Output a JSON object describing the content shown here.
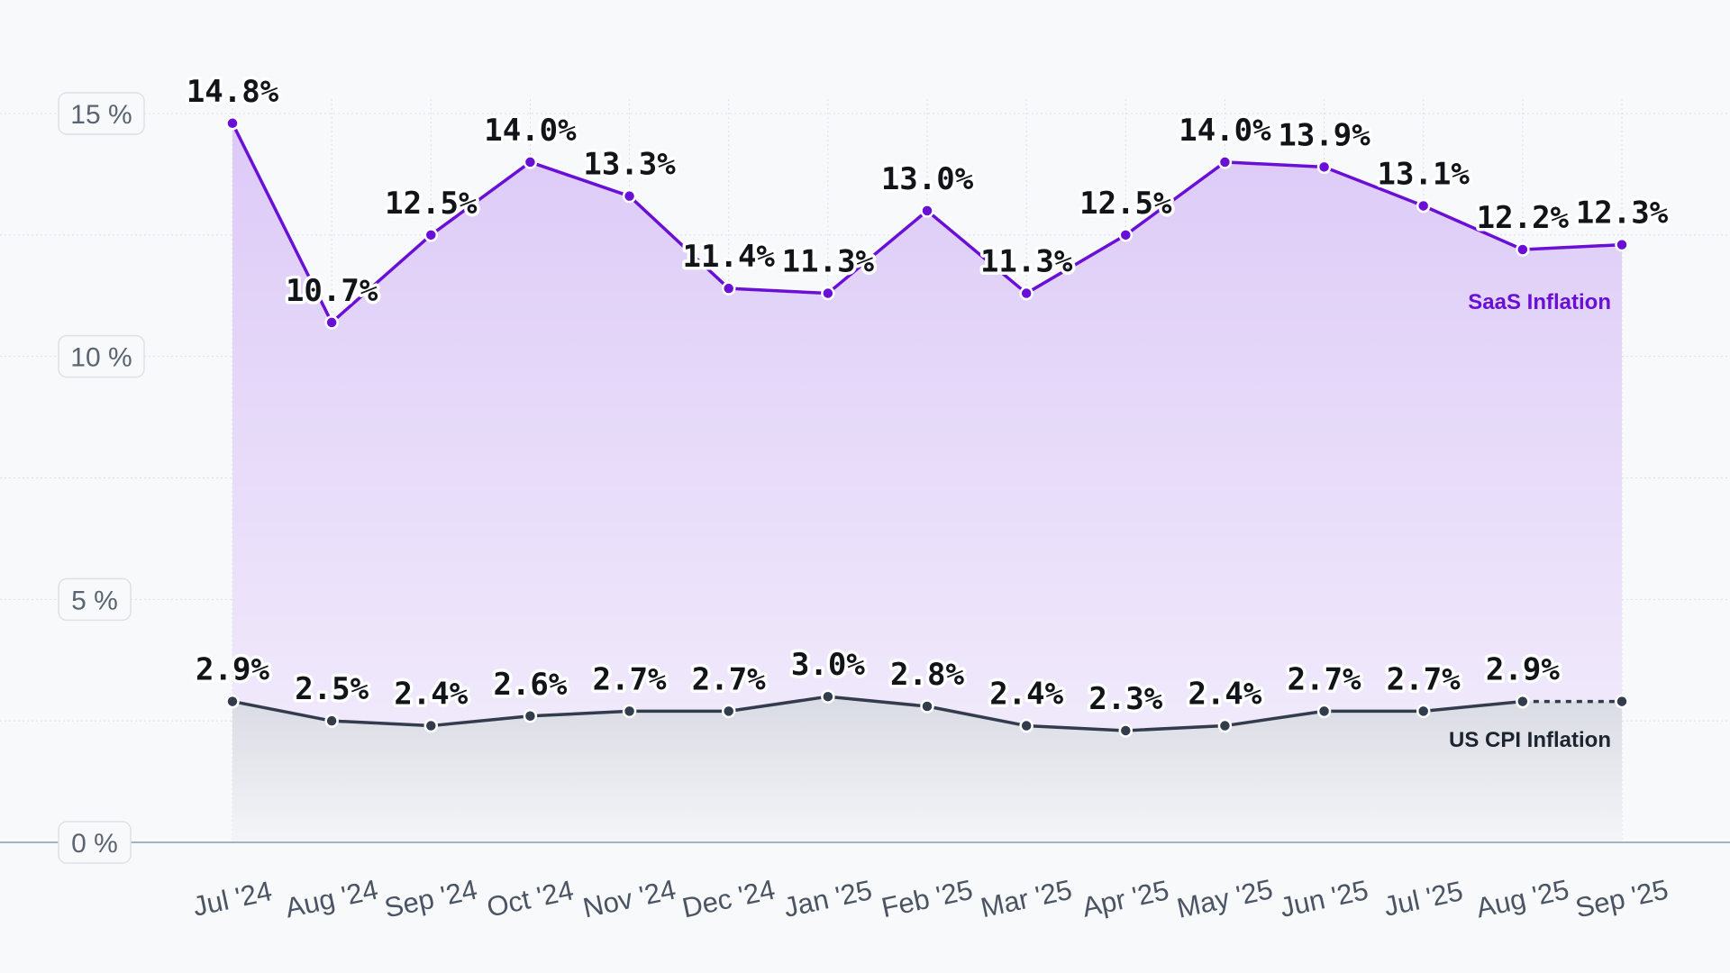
{
  "chart_data": {
    "type": "area",
    "categories": [
      "Jul '24",
      "Aug '24",
      "Sep '24",
      "Oct '24",
      "Nov '24",
      "Dec '24",
      "Jan '25",
      "Feb '25",
      "Mar '25",
      "Apr '25",
      "May '25",
      "Jun '25",
      "Jul '25",
      "Aug '25",
      "Sep '25"
    ],
    "y_ticks": [
      "0 %",
      "5 %",
      "10 %",
      "15 %"
    ],
    "ylim": [
      0,
      15
    ],
    "grid": true,
    "series": [
      {
        "name": "SaaS Inflation",
        "color": "#6a0fd6",
        "fill_top": "#dccaf7",
        "fill_bottom": "#f4effc",
        "values": [
          14.8,
          10.7,
          12.5,
          14.0,
          13.3,
          11.4,
          11.3,
          13.0,
          11.3,
          12.5,
          14.0,
          13.9,
          13.1,
          12.2,
          12.3
        ],
        "labels": [
          "14.8%",
          "10.7%",
          "12.5%",
          "14.0%",
          "13.3%",
          "11.4%",
          "11.3%",
          "13.0%",
          "11.3%",
          "12.5%",
          "14.0%",
          "13.9%",
          "13.1%",
          "12.2%",
          "12.3%"
        ]
      },
      {
        "name": "US CPI Inflation",
        "color": "#323c4c",
        "fill_top": "#d9dbe4",
        "fill_bottom": "#f4f5f8",
        "values": [
          2.9,
          2.5,
          2.4,
          2.6,
          2.7,
          2.7,
          3.0,
          2.8,
          2.4,
          2.3,
          2.4,
          2.7,
          2.7,
          2.9,
          2.9
        ],
        "labels": [
          "2.9%",
          "2.5%",
          "2.4%",
          "2.6%",
          "2.7%",
          "2.7%",
          "3.0%",
          "2.8%",
          "2.4%",
          "2.3%",
          "2.4%",
          "2.7%",
          "2.7%",
          "2.9%",
          ""
        ],
        "last_segment_dashed": true
      }
    ]
  }
}
